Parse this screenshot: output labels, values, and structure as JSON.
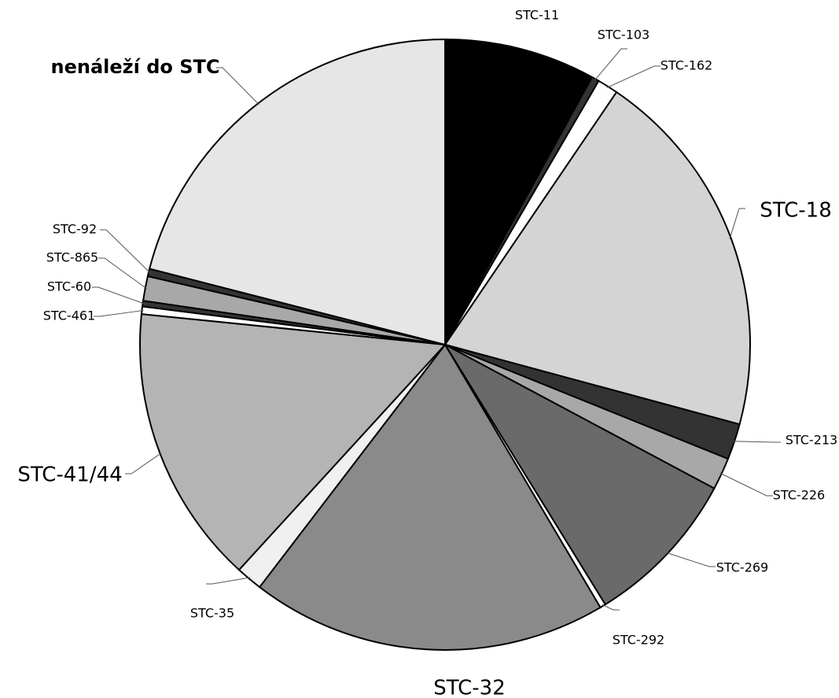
{
  "chart_data": {
    "type": "pie",
    "categories": [
      "STC-11",
      "STC-103",
      "STC-162",
      "STC-18",
      "STC-213",
      "STC-226",
      "STC-269",
      "STC-292",
      "STC-32",
      "STC-35",
      "STC-41/44",
      "STC-461",
      "STC-60",
      "STC-865",
      "STC-92",
      "nenáleží do STC"
    ],
    "values": [
      8.0,
      0.4,
      1.1,
      19.7,
      1.9,
      1.7,
      8.4,
      0.3,
      18.9,
      1.4,
      14.8,
      0.4,
      0.3,
      1.3,
      0.4,
      21.0
    ],
    "colors": [
      "#000000",
      "#333333",
      "#ffffff",
      "#d4d4d4",
      "#333333",
      "#a8a8a8",
      "#6a6a6a",
      "#ffffff",
      "#8a8a8a",
      "#f0f0f0",
      "#b4b4b4",
      "#ffffff",
      "#333333",
      "#a8a8a8",
      "#333333",
      "#e6e6e6"
    ]
  }
}
